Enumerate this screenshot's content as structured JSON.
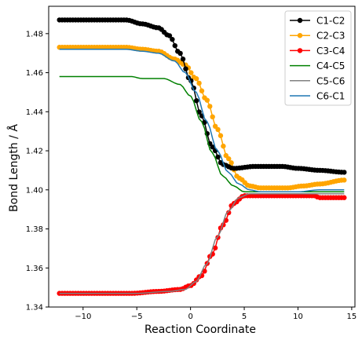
{
  "chart_data": {
    "type": "line",
    "title": "",
    "xlabel": "Reaction Coordinate",
    "ylabel": "Bond Length / Å",
    "xlim": [
      -13.2,
      15.3
    ],
    "ylim": [
      1.34,
      1.494
    ],
    "xticks": [
      -10,
      -5,
      0,
      5,
      10,
      15
    ],
    "yticks": [
      1.34,
      1.36,
      1.38,
      1.4,
      1.42,
      1.44,
      1.46,
      1.48
    ],
    "ytick_labels": [
      "1.34",
      "1.36",
      "1.38",
      "1.40",
      "1.42",
      "1.44",
      "1.46",
      "1.48"
    ],
    "grid": false,
    "legend_position": "top-right",
    "x_range": [
      -12.2,
      14.3
    ],
    "x_step": 0.25,
    "series": [
      {
        "name": "C1-C2",
        "color": "#000000",
        "marker": true,
        "curve": [
          [
            -12.2,
            1.487
          ],
          [
            -6.0,
            1.487
          ],
          [
            -4.5,
            1.485
          ],
          [
            -3.0,
            1.483
          ],
          [
            -2.0,
            1.479
          ],
          [
            -1.0,
            1.47
          ],
          [
            0.0,
            1.456
          ],
          [
            1.0,
            1.438
          ],
          [
            2.0,
            1.422
          ],
          [
            3.0,
            1.413
          ],
          [
            4.0,
            1.411
          ],
          [
            6.0,
            1.412
          ],
          [
            8.5,
            1.412
          ],
          [
            10.0,
            1.411
          ],
          [
            12.0,
            1.41
          ],
          [
            14.3,
            1.409
          ]
        ]
      },
      {
        "name": "C2-C3",
        "color": "#ffa500",
        "marker": true,
        "curve": [
          [
            -12.2,
            1.473
          ],
          [
            -6.0,
            1.473
          ],
          [
            -4.5,
            1.472
          ],
          [
            -3.0,
            1.471
          ],
          [
            -1.5,
            1.467
          ],
          [
            -0.5,
            1.464
          ],
          [
            0.5,
            1.457
          ],
          [
            1.5,
            1.446
          ],
          [
            2.5,
            1.431
          ],
          [
            3.5,
            1.416
          ],
          [
            4.5,
            1.406
          ],
          [
            5.5,
            1.402
          ],
          [
            6.5,
            1.401
          ],
          [
            9.0,
            1.401
          ],
          [
            10.5,
            1.402
          ],
          [
            12.0,
            1.403
          ],
          [
            14.3,
            1.405
          ]
        ]
      },
      {
        "name": "C3-C4",
        "color": "#ff0000",
        "marker": true,
        "curve": [
          [
            -12.2,
            1.347
          ],
          [
            -5.5,
            1.347
          ],
          [
            -3.0,
            1.348
          ],
          [
            -1.0,
            1.349
          ],
          [
            0.0,
            1.351
          ],
          [
            1.0,
            1.356
          ],
          [
            2.0,
            1.367
          ],
          [
            3.0,
            1.382
          ],
          [
            4.0,
            1.393
          ],
          [
            5.0,
            1.397
          ],
          [
            10.0,
            1.397
          ],
          [
            11.5,
            1.397
          ],
          [
            12.0,
            1.396
          ],
          [
            14.3,
            1.396
          ]
        ]
      },
      {
        "name": "C4-C5",
        "color": "#008000",
        "marker": false,
        "curve": [
          [
            -12.2,
            1.458
          ],
          [
            -5.5,
            1.458
          ],
          [
            -4.5,
            1.457
          ],
          [
            -2.5,
            1.457
          ],
          [
            -1.0,
            1.454
          ],
          [
            0.0,
            1.448
          ],
          [
            1.0,
            1.435
          ],
          [
            2.0,
            1.419
          ],
          [
            3.0,
            1.407
          ],
          [
            4.0,
            1.402
          ],
          [
            5.0,
            1.399
          ],
          [
            7.0,
            1.399
          ],
          [
            12.0,
            1.399
          ],
          [
            14.3,
            1.399
          ]
        ]
      },
      {
        "name": "C5-C6",
        "color": "#808080",
        "marker": false,
        "curve": [
          [
            -12.2,
            1.347
          ],
          [
            -5.0,
            1.347
          ],
          [
            -2.0,
            1.348
          ],
          [
            -0.5,
            1.349
          ],
          [
            0.5,
            1.353
          ],
          [
            1.5,
            1.362
          ],
          [
            2.5,
            1.376
          ],
          [
            3.5,
            1.389
          ],
          [
            4.5,
            1.396
          ],
          [
            5.5,
            1.398
          ],
          [
            10.0,
            1.398
          ],
          [
            12.0,
            1.398
          ],
          [
            14.3,
            1.398
          ]
        ]
      },
      {
        "name": "C6-C1",
        "color": "#1f77b4",
        "marker": false,
        "curve": [
          [
            -12.2,
            1.472
          ],
          [
            -6.0,
            1.472
          ],
          [
            -4.5,
            1.471
          ],
          [
            -3.0,
            1.47
          ],
          [
            -1.5,
            1.466
          ],
          [
            -0.5,
            1.46
          ],
          [
            0.5,
            1.45
          ],
          [
            1.5,
            1.435
          ],
          [
            2.5,
            1.42
          ],
          [
            3.5,
            1.409
          ],
          [
            4.5,
            1.403
          ],
          [
            5.5,
            1.4
          ],
          [
            6.5,
            1.399
          ],
          [
            10.0,
            1.399
          ],
          [
            12.0,
            1.4
          ],
          [
            14.3,
            1.4
          ]
        ]
      }
    ]
  }
}
